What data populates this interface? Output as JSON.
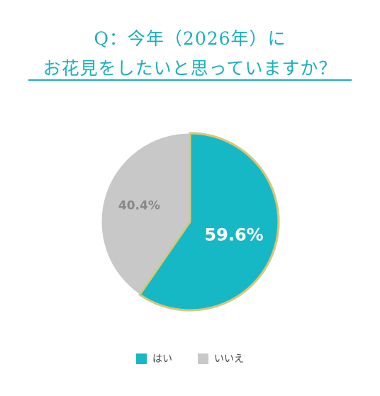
{
  "title": {
    "line1": "Q：今年（2026年）に",
    "line2": "お花見をしたいと思っていますか？"
  },
  "chart_data": {
    "type": "pie",
    "categories": [
      "はい",
      "いいえ"
    ],
    "values": [
      59.6,
      40.4
    ],
    "labels": [
      "59.6%",
      "40.4%"
    ],
    "colors": [
      "#17b8c5",
      "#c8c8c8"
    ],
    "label_colors": [
      "#ffffff",
      "#888888"
    ],
    "border_color": "#d8c67a",
    "legend_position": "bottom"
  },
  "legend": {
    "items": [
      {
        "label": "はい",
        "color": "#17b8c5"
      },
      {
        "label": "いいえ",
        "color": "#c8c8c8"
      }
    ]
  }
}
